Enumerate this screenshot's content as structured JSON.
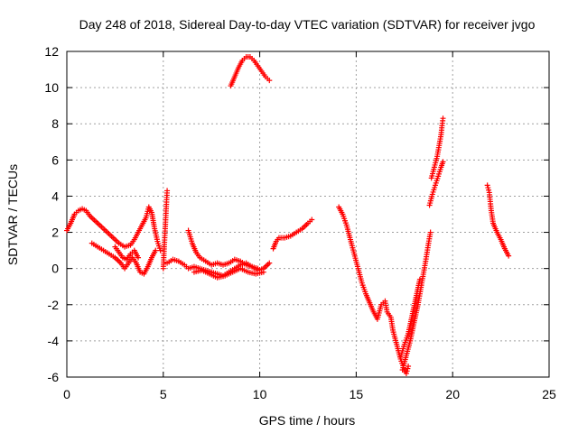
{
  "chart_data": {
    "type": "scatter",
    "title": "Day 248 of 2018, Sidereal Day-to-day VTEC variation (SDTVAR) for receiver jvgo",
    "xlabel": "GPS time / hours",
    "ylabel": "SDTVAR / TECUs",
    "xlim": [
      0,
      25
    ],
    "ylim": [
      -6,
      12
    ],
    "xticks": [
      "0",
      "5",
      "10",
      "15",
      "20",
      "25"
    ],
    "yticks": [
      "-6",
      "-4",
      "-2",
      "0",
      "2",
      "4",
      "6",
      "8",
      "10",
      "12"
    ],
    "grid": true,
    "marker": "+",
    "series": [
      {
        "color": "#ff0000",
        "segments": [
          [
            [
              0.0,
              2.1
            ],
            [
              0.2,
              2.5
            ],
            [
              0.4,
              3.0
            ],
            [
              0.6,
              3.2
            ],
            [
              0.8,
              3.3
            ],
            [
              1.0,
              3.2
            ],
            [
              1.2,
              2.9
            ],
            [
              1.5,
              2.6
            ],
            [
              1.8,
              2.3
            ],
            [
              2.1,
              2.0
            ],
            [
              2.4,
              1.7
            ],
            [
              2.7,
              1.4
            ],
            [
              3.0,
              1.2
            ],
            [
              3.3,
              1.3
            ],
            [
              3.5,
              1.6
            ],
            [
              3.7,
              2.0
            ],
            [
              3.9,
              2.4
            ],
            [
              4.1,
              2.8
            ],
            [
              4.25,
              3.4
            ],
            [
              4.4,
              3.1
            ],
            [
              4.55,
              2.2
            ],
            [
              4.7,
              1.5
            ],
            [
              4.85,
              1.0
            ]
          ],
          [
            [
              1.3,
              1.4
            ],
            [
              1.6,
              1.2
            ],
            [
              1.9,
              1.0
            ],
            [
              2.2,
              0.8
            ],
            [
              2.5,
              0.6
            ],
            [
              2.8,
              0.3
            ],
            [
              3.0,
              0.0
            ],
            [
              3.2,
              0.3
            ],
            [
              3.4,
              0.6
            ],
            [
              3.6,
              0.3
            ],
            [
              3.8,
              -0.2
            ],
            [
              4.0,
              -0.3
            ],
            [
              4.2,
              0.1
            ],
            [
              4.4,
              0.6
            ],
            [
              4.6,
              1.0
            ]
          ],
          [
            [
              2.5,
              1.2
            ],
            [
              2.7,
              0.9
            ],
            [
              2.9,
              0.6
            ],
            [
              3.1,
              0.5
            ],
            [
              3.3,
              0.8
            ],
            [
              3.5,
              1.0
            ],
            [
              3.7,
              0.6
            ]
          ],
          [
            [
              5.0,
              0.0
            ],
            [
              5.05,
              1.2
            ],
            [
              5.1,
              2.2
            ],
            [
              5.15,
              3.3
            ],
            [
              5.2,
              4.3
            ]
          ],
          [
            [
              5.2,
              0.3
            ],
            [
              5.5,
              0.5
            ],
            [
              5.8,
              0.4
            ],
            [
              6.1,
              0.2
            ],
            [
              6.3,
              0.0
            ],
            [
              6.6,
              0.1
            ],
            [
              6.9,
              0.0
            ],
            [
              7.2,
              -0.1
            ],
            [
              7.5,
              -0.2
            ],
            [
              7.8,
              -0.3
            ],
            [
              8.1,
              -0.4
            ],
            [
              8.4,
              -0.2
            ],
            [
              8.7,
              0.0
            ],
            [
              9.0,
              0.2
            ],
            [
              9.3,
              0.3
            ],
            [
              9.6,
              0.1
            ],
            [
              9.9,
              -0.1
            ],
            [
              10.2,
              0.0
            ],
            [
              10.5,
              0.3
            ]
          ],
          [
            [
              6.3,
              2.1
            ],
            [
              6.5,
              1.4
            ],
            [
              6.7,
              0.9
            ],
            [
              6.9,
              0.6
            ],
            [
              7.2,
              0.4
            ],
            [
              7.5,
              0.2
            ],
            [
              7.8,
              0.3
            ],
            [
              8.1,
              0.2
            ],
            [
              8.4,
              0.3
            ],
            [
              8.7,
              0.5
            ],
            [
              9.0,
              0.4
            ],
            [
              9.3,
              0.2
            ],
            [
              9.6,
              0.1
            ],
            [
              9.9,
              0.0
            ]
          ],
          [
            [
              6.6,
              -0.2
            ],
            [
              7.0,
              -0.1
            ],
            [
              7.4,
              -0.3
            ],
            [
              7.8,
              -0.5
            ],
            [
              8.2,
              -0.4
            ],
            [
              8.6,
              -0.2
            ],
            [
              9.0,
              0.0
            ],
            [
              9.4,
              -0.2
            ],
            [
              9.8,
              -0.3
            ],
            [
              10.2,
              -0.2
            ]
          ],
          [
            [
              8.5,
              10.1
            ],
            [
              8.7,
              10.6
            ],
            [
              8.9,
              11.1
            ],
            [
              9.1,
              11.5
            ],
            [
              9.3,
              11.7
            ],
            [
              9.5,
              11.7
            ],
            [
              9.7,
              11.5
            ],
            [
              9.9,
              11.2
            ],
            [
              10.1,
              10.9
            ],
            [
              10.3,
              10.6
            ],
            [
              10.5,
              10.4
            ]
          ],
          [
            [
              10.7,
              1.1
            ],
            [
              10.85,
              1.5
            ],
            [
              11.0,
              1.7
            ],
            [
              11.3,
              1.7
            ],
            [
              11.6,
              1.8
            ],
            [
              11.9,
              2.0
            ],
            [
              12.2,
              2.2
            ],
            [
              12.5,
              2.5
            ],
            [
              12.7,
              2.7
            ]
          ],
          [
            [
              14.1,
              3.4
            ],
            [
              14.3,
              3.0
            ],
            [
              14.5,
              2.4
            ],
            [
              14.7,
              1.6
            ],
            [
              14.9,
              0.8
            ],
            [
              15.1,
              0.0
            ],
            [
              15.3,
              -0.8
            ],
            [
              15.5,
              -1.4
            ],
            [
              15.7,
              -1.9
            ],
            [
              15.9,
              -2.4
            ],
            [
              16.1,
              -2.8
            ],
            [
              16.3,
              -2.0
            ],
            [
              16.5,
              -1.8
            ],
            [
              16.6,
              -2.4
            ],
            [
              16.8,
              -2.7
            ],
            [
              16.9,
              -3.4
            ],
            [
              17.1,
              -4.2
            ],
            [
              17.3,
              -5.0
            ],
            [
              17.5,
              -5.6
            ],
            [
              17.6,
              -5.8
            ],
            [
              17.7,
              -5.4
            ]
          ],
          [
            [
              17.4,
              -5.6
            ],
            [
              17.6,
              -4.8
            ],
            [
              17.8,
              -4.0
            ],
            [
              18.0,
              -3.0
            ],
            [
              18.2,
              -2.0
            ],
            [
              18.4,
              -0.8
            ],
            [
              18.6,
              0.4
            ],
            [
              18.75,
              1.4
            ],
            [
              18.85,
              2.0
            ]
          ],
          [
            [
              17.3,
              -4.9
            ],
            [
              17.5,
              -4.2
            ],
            [
              17.7,
              -3.6
            ],
            [
              17.9,
              -2.6
            ],
            [
              18.1,
              -1.6
            ],
            [
              18.3,
              -0.6
            ]
          ],
          [
            [
              18.8,
              3.5
            ],
            [
              18.95,
              4.1
            ],
            [
              19.1,
              4.6
            ],
            [
              19.25,
              5.1
            ],
            [
              19.4,
              5.6
            ],
            [
              19.5,
              5.9
            ]
          ],
          [
            [
              18.9,
              5.0
            ],
            [
              19.05,
              5.6
            ],
            [
              19.2,
              6.2
            ],
            [
              19.3,
              6.8
            ],
            [
              19.4,
              7.4
            ],
            [
              19.45,
              7.9
            ],
            [
              19.5,
              8.3
            ]
          ],
          [
            [
              21.8,
              4.6
            ],
            [
              21.9,
              4.2
            ],
            [
              22.0,
              3.2
            ],
            [
              22.1,
              2.5
            ],
            [
              22.3,
              2.0
            ],
            [
              22.5,
              1.6
            ],
            [
              22.7,
              1.1
            ],
            [
              22.9,
              0.7
            ]
          ]
        ]
      }
    ]
  }
}
